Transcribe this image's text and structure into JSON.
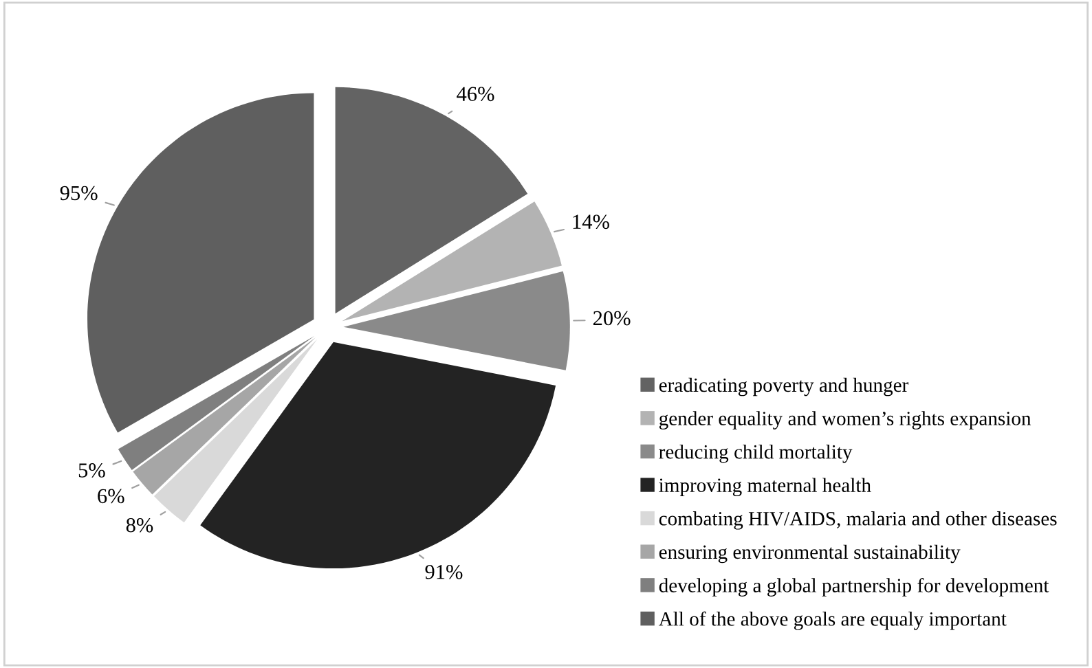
{
  "chart_data": {
    "type": "pie",
    "categories": [
      "eradicating poverty and hunger",
      "gender equality and women’s rights expansion",
      "reducing child mortality",
      "improving maternal health",
      "combating HIV/AIDS, malaria and other diseases",
      "ensuring environmental sustainability",
      "developing a global partnership for development",
      "All of the above goals are equaly important"
    ],
    "values": [
      46,
      14,
      20,
      91,
      8,
      6,
      5,
      95
    ],
    "value_labels": [
      "46%",
      "14%",
      "20%",
      "91%",
      "8%",
      "6%",
      "5%",
      "95%"
    ],
    "colors": [
      "#636363",
      "#b3b3b3",
      "#8a8a8a",
      "#232323",
      "#d9d9d9",
      "#a6a6a6",
      "#7f7f7f",
      "#5f5f5f"
    ],
    "legend": "right"
  }
}
